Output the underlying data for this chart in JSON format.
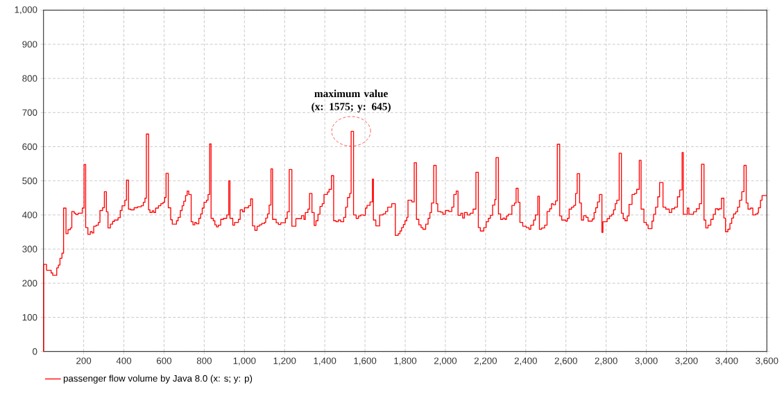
{
  "chart_data": {
    "type": "step",
    "xlim": [
      0,
      3600
    ],
    "ylim": [
      0,
      1000
    ],
    "xticks": [
      200,
      400,
      600,
      800,
      {
        "value": 1000,
        "label": "1,000"
      },
      {
        "value": 1200,
        "label": "1,200"
      },
      {
        "value": 1400,
        "label": "1,400"
      },
      {
        "value": 1600,
        "label": "1,600"
      },
      {
        "value": 1800,
        "label": "1,800"
      },
      {
        "value": 2000,
        "label": "2,000"
      },
      {
        "value": 2200,
        "label": "2,200"
      },
      {
        "value": 2400,
        "label": "2,400"
      },
      {
        "value": 2600,
        "label": "2,600"
      },
      {
        "value": 2800,
        "label": "2,800"
      },
      {
        "value": 3000,
        "label": "3,000"
      },
      {
        "value": 3200,
        "label": "3,200"
      },
      {
        "value": 3400,
        "label": "3,400"
      },
      {
        "value": 3600,
        "label": "3,600"
      }
    ],
    "yticks": [
      0,
      100,
      200,
      300,
      400,
      500,
      600,
      700,
      800,
      900,
      {
        "value": 1000,
        "label": "1,000"
      }
    ],
    "grid": true,
    "legend": "bottom left",
    "marker": "none",
    "annotations": [
      {
        "text": "maximum value (x: 1575; y: 645)",
        "x": 1531,
        "y": 645
      }
    ],
    "series": [
      {
        "name": "passenger flow volume by Java 8.0 (x: s; y: p)",
        "color": "#ff0000",
        "x": [
          0,
          1,
          15,
          38,
          46,
          66,
          74,
          82,
          92,
          100,
          112,
          122,
          134,
          141,
          153,
          161,
          172,
          193,
          202,
          210,
          221,
          233,
          242,
          250,
          262,
          273,
          281,
          294,
          303,
          313,
          321,
          333,
          344,
          353,
          371,
          382,
          391,
          405,
          413,
          423,
          434,
          451,
          468,
          486,
          497,
          505,
          512,
          523,
          530,
          541,
          549,
          558,
          572,
          584,
          595,
          603,
          610,
          621,
          633,
          641,
          662,
          670,
          681,
          690,
          698,
          707,
          715,
          723,
          735,
          744,
          753,
          761,
          773,
          782,
          790,
          799,
          811,
          819,
          827,
          834,
          845,
          853,
          861,
          870,
          882,
          896,
          912,
          922,
          928,
          942,
          951,
          970,
          979,
          991,
          1000,
          1020,
          1031,
          1040,
          1052,
          1063,
          1075,
          1086,
          1100,
          1106,
          1115,
          1123,
          1132,
          1140,
          1158,
          1169,
          1181,
          1204,
          1213,
          1223,
          1236,
          1256,
          1284,
          1296,
          1303,
          1316,
          1324,
          1336,
          1347,
          1356,
          1366,
          1376,
          1387,
          1396,
          1413,
          1421,
          1433,
          1444,
          1456,
          1467,
          1479,
          1494,
          1504,
          1513,
          1524,
          1531,
          1543,
          1556,
          1568,
          1579,
          1593,
          1602,
          1610,
          1625,
          1637,
          1642,
          1654,
          1673,
          1690,
          1702,
          1713,
          1733,
          1751,
          1765,
          1774,
          1782,
          1791,
          1799,
          1808,
          1814,
          1833,
          1845,
          1856,
          1868,
          1879,
          1888,
          1902,
          1914,
          1923,
          1931,
          1942,
          1954,
          1962,
          1977,
          1988,
          2000,
          2017,
          2032,
          2042,
          2054,
          2063,
          2077,
          2086,
          2095,
          2109,
          2123,
          2138,
          2152,
          2164,
          2174,
          2191,
          2203,
          2214,
          2224,
          2235,
          2246,
          2252,
          2264,
          2275,
          2287,
          2296,
          2304,
          2313,
          2331,
          2344,
          2352,
          2362,
          2371,
          2385,
          2402,
          2416,
          2425,
          2439,
          2448,
          2460,
          2468,
          2479,
          2494,
          2506,
          2519,
          2528,
          2536,
          2548,
          2557,
          2569,
          2579,
          2599,
          2607,
          2616,
          2628,
          2639,
          2648,
          2656,
          2668,
          2677,
          2688,
          2700,
          2710,
          2731,
          2740,
          2748,
          2757,
          2767,
          2779,
          2784,
          2805,
          2817,
          2828,
          2837,
          2845,
          2853,
          2865,
          2876,
          2885,
          2894,
          2905,
          2914,
          2929,
          2942,
          2952,
          2965,
          2974,
          2988,
          3000,
          3009,
          3028,
          3036,
          3046,
          3057,
          3066,
          3083,
          3097,
          3114,
          3126,
          3141,
          3155,
          3166,
          3178,
          3184,
          3204,
          3212,
          3235,
          3249,
          3264,
          3275,
          3287,
          3296,
          3307,
          3321,
          3333,
          3344,
          3356,
          3362,
          3374,
          3386,
          3394,
          3406,
          3416,
          3425,
          3434,
          3445,
          3454,
          3464,
          3475,
          3486,
          3497,
          3506,
          3518,
          3530,
          3544,
          3555,
          3558,
          3568,
          3576,
          3600
        ],
        "values": [
          0,
          255,
          238,
          230,
          223,
          245,
          253,
          273,
          288,
          420,
          345,
          357,
          362,
          410,
          405,
          401,
          405,
          420,
          548,
          363,
          343,
          351,
          347,
          367,
          370,
          378,
          413,
          421,
          468,
          409,
          362,
          373,
          381,
          385,
          392,
          413,
          427,
          443,
          502,
          417,
          415,
          421,
          424,
          427,
          437,
          449,
          637,
          415,
          407,
          412,
          407,
          420,
          427,
          433,
          437,
          451,
          522,
          421,
          386,
          373,
          383,
          393,
          413,
          427,
          440,
          457,
          470,
          460,
          380,
          371,
          378,
          374,
          390,
          403,
          420,
          437,
          443,
          460,
          608,
          390,
          383,
          371,
          365,
          370,
          387,
          390,
          400,
          500,
          390,
          370,
          378,
          387,
          415,
          409,
          421,
          427,
          447,
          368,
          355,
          367,
          371,
          375,
          378,
          391,
          403,
          429,
          535,
          387,
          377,
          372,
          377,
          390,
          409,
          533,
          367,
          389,
          398,
          387,
          407,
          417,
          463,
          407,
          369,
          383,
          402,
          425,
          433,
          460,
          467,
          475,
          515,
          383,
          380,
          385,
          380,
          393,
          423,
          451,
          463,
          645,
          400,
          390,
          397,
          400,
          399,
          420,
          428,
          438,
          505,
          385,
          368,
          400,
          403,
          410,
          423,
          433,
          340,
          345,
          353,
          363,
          372,
          383,
          393,
          443,
          438,
          553,
          387,
          371,
          363,
          358,
          373,
          390,
          407,
          435,
          545,
          433,
          410,
          408,
          402,
          413,
          410,
          423,
          460,
          470,
          399,
          405,
          391,
          407,
          400,
          405,
          417,
          525,
          363,
          353,
          363,
          380,
          390,
          399,
          429,
          445,
          568,
          403,
          387,
          391,
          387,
          397,
          402,
          428,
          435,
          478,
          437,
          378,
          367,
          363,
          358,
          370,
          385,
          400,
          455,
          358,
          362,
          370,
          410,
          418,
          433,
          430,
          441,
          607,
          397,
          385,
          382,
          390,
          417,
          423,
          428,
          463,
          521,
          435,
          385,
          398,
          393,
          382,
          388,
          407,
          421,
          438,
          460,
          349,
          380,
          389,
          397,
          402,
          415,
          433,
          443,
          581,
          405,
          389,
          383,
          397,
          431,
          460,
          463,
          475,
          560,
          417,
          378,
          371,
          360,
          382,
          402,
          423,
          453,
          495,
          423,
          417,
          407,
          418,
          423,
          453,
          473,
          583,
          402,
          420,
          402,
          409,
          418,
          433,
          549,
          385,
          362,
          370,
          387,
          402,
          418,
          415,
          418,
          449,
          391,
          351,
          358,
          375,
          391,
          403,
          409,
          423,
          443,
          468,
          545,
          435,
          417,
          420,
          400,
          403,
          407,
          421,
          443,
          457,
          457
        ]
      }
    ]
  }
}
